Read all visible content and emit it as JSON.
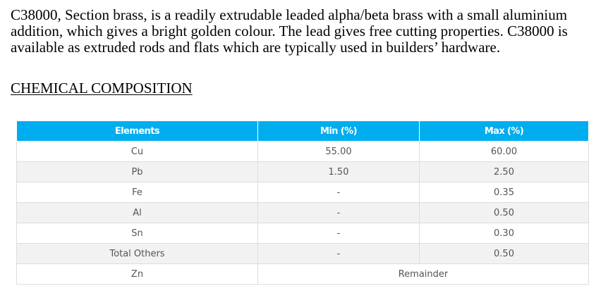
{
  "intro_text": "C38000, Section brass, is a readily extrudable leaded alpha/beta brass with a small aluminium addition, which gives a bright golden colour. The lead gives free cutting properties. C38000 is available as extruded rods and flats which are typically used in builders’ hardware.",
  "section_heading": "CHEMICAL COMPOSITION",
  "table": {
    "headers": [
      "Elements",
      "Min (%)",
      "Max (%)"
    ],
    "rows": [
      [
        "Cu",
        "55.00",
        "60.00"
      ],
      [
        "Pb",
        "1.50",
        "2.50"
      ],
      [
        "Fe",
        "-",
        "0.35"
      ],
      [
        "Al",
        "-",
        "0.50"
      ],
      [
        "Sn",
        "-",
        "0.30"
      ],
      [
        "Total Others",
        "-",
        "0.50"
      ]
    ],
    "final_row": {
      "element": "Zn",
      "value": "Remainder"
    }
  },
  "colors": {
    "header_background": "#00aeef",
    "header_text": "#ffffff",
    "cell_text": "#555555",
    "alt_row_background": "#f2f2f2"
  }
}
